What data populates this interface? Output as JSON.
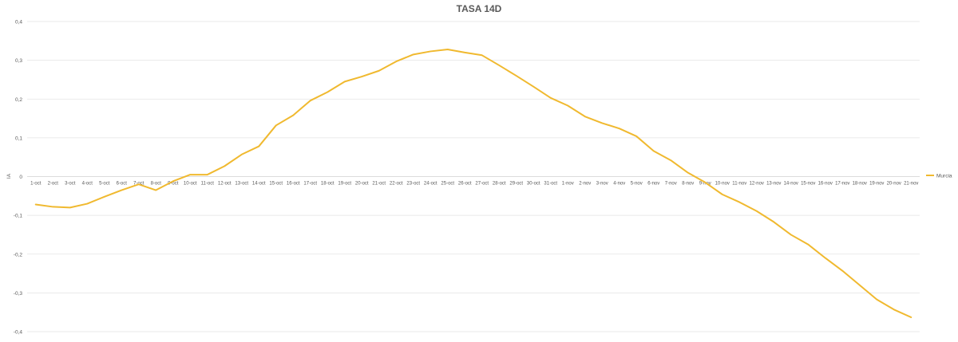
{
  "chart_data": {
    "type": "line",
    "title": "TASA 14D",
    "xlabel": "",
    "ylabel": "IA",
    "ylim": [
      -0.4,
      0.4
    ],
    "yticks": [
      "0,4",
      "0,3",
      "0,2",
      "0,1",
      "0",
      "-0,1",
      "-0,2",
      "-0,3",
      "-0,4"
    ],
    "ytick_values": [
      0.4,
      0.3,
      0.2,
      0.1,
      0,
      -0.1,
      -0.2,
      -0.3,
      -0.4
    ],
    "grid": true,
    "legend_position": "right",
    "categories": [
      "1-oct",
      "2-oct",
      "3-oct",
      "4-oct",
      "5-oct",
      "6-oct",
      "7-oct",
      "8-oct",
      "9-oct",
      "10-oct",
      "11-oct",
      "12-oct",
      "13-oct",
      "14-oct",
      "15-oct",
      "16-oct",
      "17-oct",
      "18-oct",
      "19-oct",
      "20-oct",
      "21-oct",
      "22-oct",
      "23-oct",
      "24-oct",
      "25-oct",
      "26-oct",
      "27-oct",
      "28-oct",
      "29-oct",
      "30-oct",
      "31-oct",
      "1-nov",
      "2-nov",
      "3-nov",
      "4-nov",
      "5-nov",
      "6-nov",
      "7-nov",
      "8-nov",
      "9-nov",
      "10-nov",
      "11-nov",
      "12-nov",
      "13-nov",
      "14-nov",
      "15-nov",
      "16-nov",
      "17-nov",
      "18-nov",
      "19-nov",
      "20-nov",
      "21-nov"
    ],
    "series": [
      {
        "name": "Murcia",
        "color": "#f0b92f",
        "values": [
          -0.072,
          -0.078,
          -0.08,
          -0.07,
          -0.052,
          -0.035,
          -0.02,
          -0.035,
          -0.012,
          0.005,
          0.005,
          0.027,
          0.057,
          0.078,
          0.132,
          0.158,
          0.196,
          0.218,
          0.245,
          0.258,
          0.273,
          0.297,
          0.315,
          0.323,
          0.328,
          0.32,
          0.313,
          0.287,
          0.26,
          0.232,
          0.203,
          0.183,
          0.155,
          0.138,
          0.124,
          0.104,
          0.066,
          0.042,
          0.01,
          -0.015,
          -0.046,
          -0.066,
          -0.089,
          -0.117,
          -0.15,
          -0.175,
          -0.21,
          -0.243,
          -0.28,
          -0.317,
          -0.343,
          -0.363
        ]
      }
    ]
  }
}
